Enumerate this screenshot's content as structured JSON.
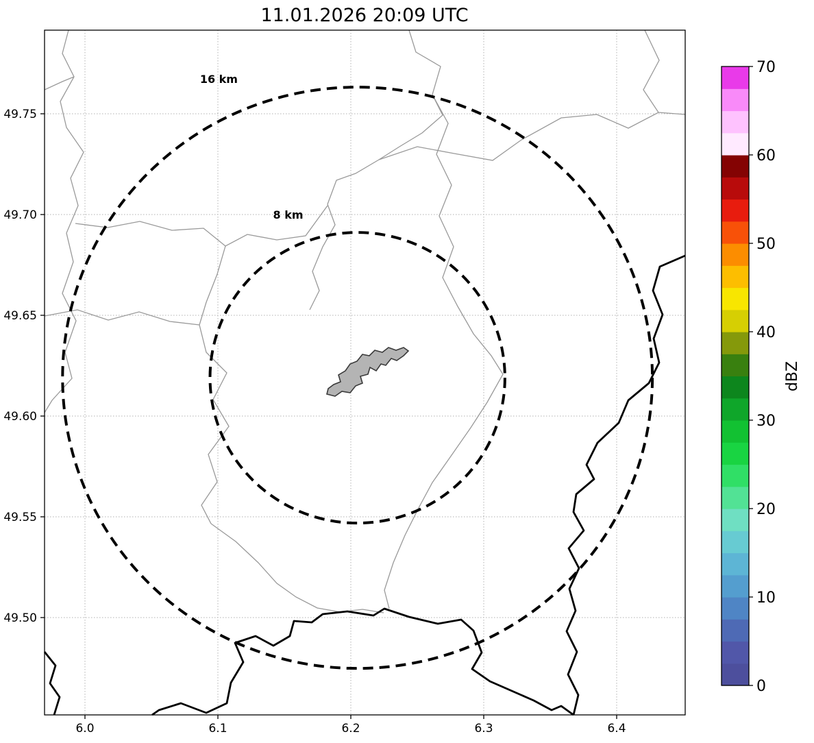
{
  "title": "11.01.2026 20:09 UTC",
  "chart_data": {
    "type": "map",
    "title": "11.01.2026 20:09 UTC",
    "x_axis": {
      "label": "",
      "tick_values": [
        6.0,
        6.1,
        6.2,
        6.3,
        6.4
      ],
      "tick_labels": [
        "6.0",
        "6.1",
        "6.2",
        "6.3",
        "6.4"
      ],
      "range": [
        5.969,
        6.452
      ]
    },
    "y_axis": {
      "label": "",
      "tick_values": [
        49.75,
        49.7,
        49.65,
        49.6,
        49.55,
        49.5
      ],
      "tick_labels": [
        "49.75",
        "49.70",
        "49.65",
        "49.60",
        "49.55",
        "49.50"
      ],
      "range": [
        49.452,
        49.792
      ]
    },
    "grid": true,
    "ring_center": {
      "lon": 6.205,
      "lat": 49.619
    },
    "range_rings": [
      {
        "label": "16 km",
        "radius_km": 16
      },
      {
        "label": "8 km",
        "radius_km": 8
      }
    ],
    "map_features": {
      "city_polygon_fill": "#b4b4b4",
      "city_polygon_stroke": "#3a3a3a",
      "admin_boundary_color": "#999999",
      "national_border_color": "#000000"
    },
    "radar_echoes": [],
    "notes": "Radar range-ring display over map; no reflectivity echoes visible inside plot area.",
    "colorbar": {
      "label": "dBZ",
      "min": 0,
      "max": 70,
      "tick_values": [
        0,
        10,
        20,
        30,
        40,
        50,
        60,
        70
      ],
      "tick_labels": [
        "0",
        "10",
        "20",
        "30",
        "40",
        "50",
        "60",
        "70"
      ],
      "colors_bottom_to_top": [
        "#4d4f9d",
        "#5157a9",
        "#4e6ab5",
        "#4f85c5",
        "#549ecf",
        "#5db5d5",
        "#67cbd2",
        "#6fdfc2",
        "#52e295",
        "#30df66",
        "#19d442",
        "#12c132",
        "#0fa62a",
        "#0d861d",
        "#39800f",
        "#85990b",
        "#d6cf03",
        "#f8e600",
        "#fdbe00",
        "#fc8d00",
        "#f85108",
        "#e81c0e",
        "#b80b0b",
        "#840303",
        "#ffeaff",
        "#fec2fe",
        "#f98af9",
        "#e93ae9"
      ]
    }
  }
}
